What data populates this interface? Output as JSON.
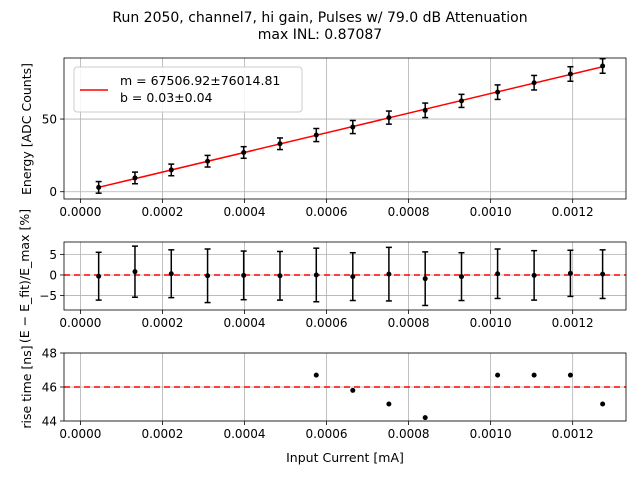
{
  "title_line1": "Run 2050, channel7, hi gain, Pulses w/ 79.0 dB Attenuation",
  "title_line2": "max INL: 0.87087",
  "colors": {
    "fit": "#ff0000",
    "points": "#000000",
    "grid": "#b0b0b0",
    "dashed": "#ff0000"
  },
  "chart_data": [
    {
      "type": "scatter",
      "title": "",
      "ylabel": "Energy [ADC Counts]",
      "xlim": [
        -4e-05,
        0.00133
      ],
      "ylim": [
        -5,
        92
      ],
      "grid": true,
      "legend_position": "upper-left",
      "x_ticks": [
        "0.0000",
        "0.0002",
        "0.0004",
        "0.0006",
        "0.0008",
        "0.0010",
        "0.0012"
      ],
      "y_ticks": [
        "0",
        "50"
      ],
      "legend": {
        "fit_label_1": "m = 67506.92±76014.81",
        "fit_label_2": "b = 0.03±0.04"
      },
      "fit_line": {
        "slope": 67506.92,
        "intercept": 0.03,
        "x_range": [
          4.45e-05,
          0.001273
        ]
      },
      "series": [
        {
          "x": [
            4.45e-05,
            0.000133,
            0.0002215,
            0.00031,
            0.000398,
            0.0004865,
            0.000575,
            0.000664,
            0.000752,
            0.0008405,
            0.000929,
            0.001017,
            0.001106,
            0.0011945,
            0.001273
          ],
          "y": [
            3.0,
            9.5,
            15.0,
            21.0,
            27.0,
            33.0,
            39.0,
            44.5,
            51.0,
            56.0,
            62.5,
            68.5,
            75.0,
            81.0,
            86.5
          ],
          "yerr": [
            4,
            4,
            4,
            4,
            4,
            4,
            4.5,
            4.5,
            4.5,
            5,
            4.5,
            5,
            5,
            5,
            5
          ]
        }
      ]
    },
    {
      "type": "scatter",
      "ylabel": "(E − E_fit)/E_max [%]",
      "xlim": [
        -4e-05,
        0.00133
      ],
      "ylim": [
        -8.5,
        8
      ],
      "grid": true,
      "y_ticks": [
        "0",
        "5",
        "−5"
      ],
      "y_tick_values": [
        0,
        5,
        -5
      ],
      "reference_line": 0,
      "series": [
        {
          "x": [
            4.45e-05,
            0.000133,
            0.0002215,
            0.00031,
            0.000398,
            0.0004865,
            0.000575,
            0.000664,
            0.000752,
            0.0008405,
            0.000929,
            0.001017,
            0.001106,
            0.0011945,
            0.001273
          ],
          "y": [
            -0.3,
            0.8,
            0.3,
            -0.2,
            -0.1,
            -0.2,
            0.0,
            -0.4,
            0.2,
            -0.9,
            -0.4,
            0.3,
            -0.1,
            0.4,
            0.2
          ],
          "yerr": [
            5.8,
            6.2,
            5.8,
            6.5,
            5.9,
            5.9,
            6.5,
            5.8,
            6.5,
            6.5,
            5.8,
            6.0,
            6.0,
            5.6,
            5.9
          ]
        }
      ]
    },
    {
      "type": "scatter",
      "xlabel": "Input Current [mA]",
      "ylabel": "rise time [ns]",
      "xlim": [
        -4e-05,
        0.00133
      ],
      "ylim": [
        44,
        48
      ],
      "grid": true,
      "y_ticks": [
        "44",
        "46",
        "48"
      ],
      "y_tick_values": [
        44,
        46,
        48
      ],
      "reference_line": 46,
      "series": [
        {
          "x": [
            0.000575,
            0.000664,
            0.000752,
            0.0008405,
            0.001017,
            0.001106,
            0.0011945,
            0.001273
          ],
          "y": [
            46.7,
            45.8,
            45.0,
            44.2,
            46.7,
            46.7,
            46.7,
            45.0
          ]
        }
      ]
    }
  ]
}
